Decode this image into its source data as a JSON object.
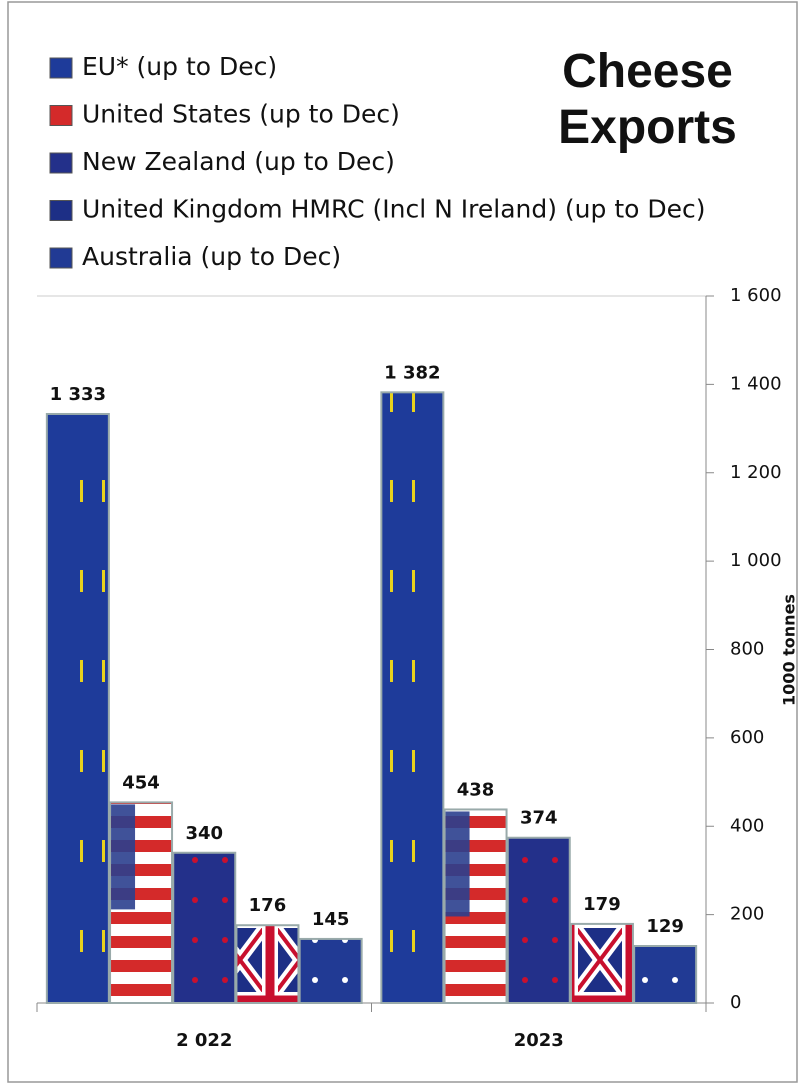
{
  "chart_data": {
    "type": "bar",
    "title": "Cheese Exports",
    "y_axis_label": "1000 tonnes",
    "categories": [
      "2 022",
      "2023"
    ],
    "series": [
      {
        "name": "EU* (up to Dec)",
        "color": "#1e3b9a",
        "values": [
          1333,
          1382
        ],
        "value_labels": [
          "1 333",
          "1 382"
        ]
      },
      {
        "name": "United States (up to Dec)",
        "color": "#d42a2a",
        "values": [
          454,
          438
        ]
      },
      {
        "name": "New Zealand (up to Dec)",
        "color": "#23308a",
        "values": [
          340,
          374
        ]
      },
      {
        "name": "United Kingdom HMRC (Incl N Ireland) (up to Dec)",
        "color": "#1d2f86",
        "values": [
          176,
          179
        ]
      },
      {
        "name": "Australia (up to Dec)",
        "color": "#213a94",
        "values": [
          145,
          129
        ]
      }
    ],
    "ylim": [
      0,
      1600
    ],
    "yticks": [
      0,
      200,
      400,
      600,
      800,
      {
        "value": 1000,
        "label": "1 000"
      },
      {
        "value": 1200,
        "label": "1 200"
      },
      {
        "value": 1400,
        "label": "1 400"
      },
      {
        "value": 1600,
        "label": "1 600"
      }
    ],
    "y_axis_side": "right"
  }
}
